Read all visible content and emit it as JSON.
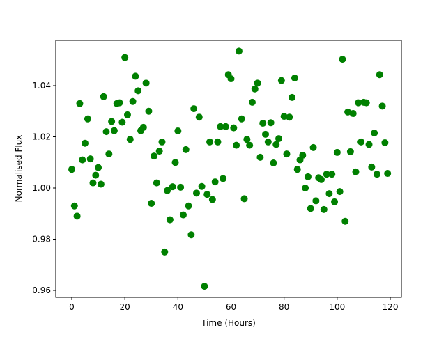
{
  "chart_data": {
    "type": "scatter",
    "title": "",
    "xlabel": "Time (Hours)",
    "ylabel": "Normalised Flux",
    "xlim": [
      -6,
      125
    ],
    "ylim": [
      0.957,
      1.058
    ],
    "xticks": [
      0,
      20,
      40,
      60,
      80,
      100,
      120
    ],
    "xtick_labels": [
      "0",
      "20",
      "40",
      "60",
      "80",
      "100",
      "120"
    ],
    "yticks": [
      0.96,
      0.98,
      1.0,
      1.02,
      1.04
    ],
    "ytick_labels": [
      "0.96",
      "0.98",
      "1.00",
      "1.02",
      "1.04"
    ],
    "grid": false,
    "marker_color": "#008000",
    "x": [
      0,
      1,
      2,
      3,
      4,
      5,
      6,
      7,
      8,
      9,
      10,
      11,
      12,
      13,
      14,
      15,
      16,
      17,
      18,
      19,
      20,
      21,
      22,
      23,
      24,
      25,
      26,
      27,
      28,
      29,
      30,
      31,
      32,
      33,
      34,
      35,
      36,
      37,
      38,
      39,
      40,
      41,
      42,
      43,
      44,
      45,
      46,
      47,
      48,
      49,
      50,
      51,
      52,
      53,
      54,
      55,
      56,
      57,
      58,
      59,
      60,
      61,
      62,
      63,
      64,
      65,
      66,
      67,
      68,
      69,
      70,
      71,
      72,
      73,
      74,
      75,
      76,
      77,
      78,
      79,
      80,
      81,
      82,
      83,
      84,
      85,
      86,
      87,
      88,
      89,
      90,
      91,
      92,
      93,
      94,
      95,
      96,
      97,
      98,
      99,
      100,
      101,
      102,
      103,
      104,
      105,
      106,
      107,
      108,
      109,
      110,
      111,
      112,
      113,
      114,
      115,
      116,
      117,
      118,
      119
    ],
    "y": [
      1.0073,
      0.993,
      0.989,
      1.033,
      1.011,
      1.0175,
      1.027,
      1.0114,
      1.002,
      1.005,
      1.008,
      1.0015,
      1.0357,
      1.022,
      1.0133,
      1.026,
      1.0224,
      1.033,
      1.0333,
      1.0257,
      1.051,
      1.0286,
      1.019,
      1.0338,
      1.0437,
      1.038,
      1.0224,
      1.0237,
      1.041,
      1.03,
      0.994,
      1.0125,
      1.002,
      1.0144,
      1.018,
      0.975,
      0.999,
      0.9876,
      1.0005,
      1.01,
      1.0223,
      1.0003,
      0.9895,
      1.015,
      0.993,
      0.9817,
      1.031,
      0.998,
      1.0277,
      1.0006,
      0.9616,
      0.9975,
      1.018,
      0.9955,
      1.0024,
      1.018,
      1.024,
      1.0037,
      1.024,
      1.0443,
      1.0427,
      1.0235,
      1.0167,
      1.0535,
      1.027,
      0.9958,
      1.019,
      1.0167,
      1.0335,
      1.0387,
      1.041,
      1.012,
      1.0253,
      1.021,
      1.018,
      1.0255,
      1.0098,
      1.017,
      1.0193,
      1.042,
      1.028,
      1.0133,
      1.0277,
      1.0354,
      1.043,
      1.0073,
      1.011,
      1.0128,
      1.0,
      1.0044,
      0.992,
      1.0158,
      0.995,
      1.004,
      1.0033,
      0.9916,
      1.0054,
      0.9978,
      1.0054,
      0.9946,
      1.0139,
      0.9986,
      1.0503,
      0.987,
      1.0297,
      1.0142,
      1.0291,
      1.0063,
      1.0333,
      1.018,
      1.0335,
      1.0333,
      1.017,
      1.0082,
      1.0215,
      1.0054,
      1.0443,
      1.032,
      1.0177,
      1.0057
    ]
  }
}
